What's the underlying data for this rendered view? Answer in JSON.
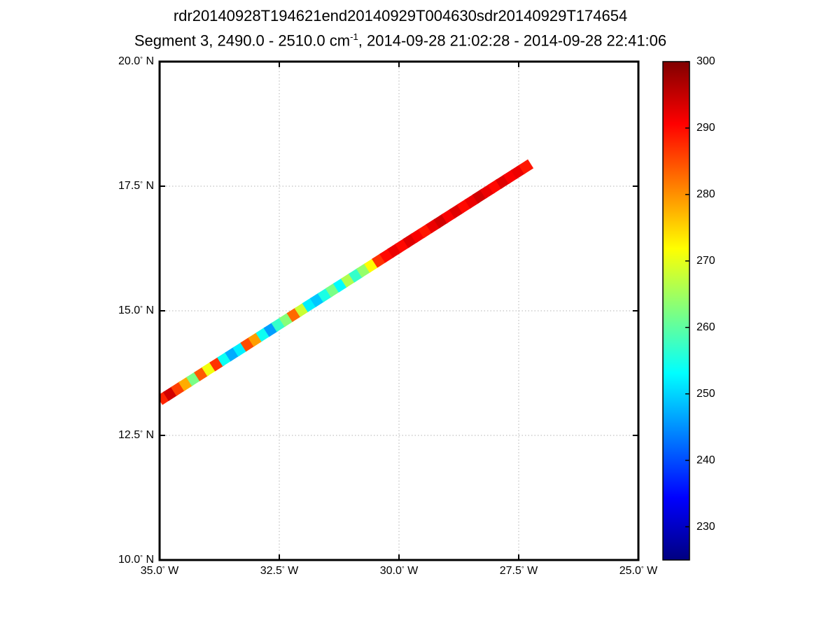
{
  "chart_data": {
    "type": "heatmap",
    "title": "rdr20140928T194621end20140929T004630sdr20140929T174654",
    "subtitle_parts": {
      "prefix": "Segment 3, 2490.0 - 2510.0 cm",
      "superscript": "-1",
      "suffix": ", 2014-09-28 21:02:28 - 2014-09-28 22:41:06"
    },
    "x_axis": {
      "ticks": [
        35.0,
        32.5,
        30.0,
        27.5,
        25.0
      ],
      "tick_labels": [
        "35.0",
        "32.5",
        "30.0",
        "27.5",
        "25.0"
      ],
      "degree_symbol": "°",
      "suffix": "W",
      "range": [
        35.0,
        25.0
      ]
    },
    "y_axis": {
      "ticks": [
        20.0,
        17.5,
        15.0,
        12.5,
        10.0
      ],
      "tick_labels": [
        "20.0",
        "17.5",
        "15.0",
        "12.5",
        "10.0"
      ],
      "degree_symbol": "°",
      "suffix": "N",
      "range": [
        10.0,
        20.0
      ]
    },
    "grid": {
      "show": true,
      "line_style": "dotted"
    },
    "colorbar": {
      "min": 225,
      "max": 300,
      "ticks": [
        230,
        240,
        250,
        260,
        270,
        280,
        290,
        300
      ],
      "tick_labels": [
        "230",
        "240",
        "250",
        "260",
        "270",
        "280",
        "290",
        "300"
      ],
      "colormap": "jet",
      "position": "right"
    },
    "swath": {
      "start": {
        "lon_w": 35.0,
        "lat_n": 13.2
      },
      "end": {
        "lon_w": 27.25,
        "lat_n": 17.95
      },
      "values": [
        288,
        294,
        286,
        278,
        262,
        284,
        271,
        287,
        254,
        247,
        252,
        285,
        279,
        254,
        246,
        257,
        263,
        283,
        268,
        252,
        249,
        255,
        262,
        253,
        266,
        257,
        264,
        272,
        287,
        290,
        292,
        290,
        293,
        291,
        289,
        292,
        294,
        291,
        293,
        290,
        292,
        294,
        292,
        290,
        293,
        291,
        292,
        289
      ]
    }
  }
}
